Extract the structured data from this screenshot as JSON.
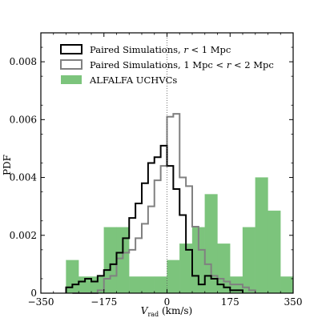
{
  "chart_data": {
    "type": "histogram",
    "xlabel": "V",
    "xlabel_sub": "rad",
    "xlabel_unit": " (km/s)",
    "ylabel": "PDF",
    "xlim": [
      -350,
      350
    ],
    "ylim": [
      0,
      0.009
    ],
    "xticks": [
      -350,
      -175,
      0,
      175,
      350
    ],
    "xtick_labels": [
      "−350",
      "−175",
      "0",
      "175",
      "350"
    ],
    "yticks": [
      0,
      0.002,
      0.004,
      0.006,
      0.008
    ],
    "ytick_labels": [
      "0",
      "0.002",
      "0.004",
      "0.006",
      "0.008"
    ],
    "reference_line_x": 0,
    "legend_position": "top-left",
    "alfalfa": {
      "name": "ALFALFA UCHVCs",
      "color": "#7cc47c",
      "bin_edges": [
        -350,
        -315,
        -280,
        -245,
        -210,
        -175,
        -140,
        -105,
        -70,
        -35,
        0,
        35,
        70,
        105,
        140,
        175,
        210,
        245,
        280,
        315,
        350
      ],
      "values": [
        0.0,
        0.0,
        0.00114,
        0.00057,
        0.00057,
        0.00228,
        0.00228,
        0.00057,
        0.00057,
        0.00057,
        0.00114,
        0.00171,
        0.00228,
        0.00342,
        0.00171,
        0.00057,
        0.00228,
        0.004,
        0.00285,
        0.00057
      ]
    },
    "series": [
      {
        "name": "Paired Simulations, r < 1 Mpc",
        "color": "#000000",
        "bin_edges": [
          -280,
          -262.5,
          -245,
          -227.5,
          -210,
          -192.5,
          -175,
          -157.5,
          -140,
          -122.5,
          -105,
          -87.5,
          -70,
          -52.5,
          -35,
          -17.5,
          0,
          17.5,
          35,
          52.5,
          70,
          87.5,
          105,
          122.5,
          140,
          157.5,
          175,
          192.5,
          210
        ],
        "values": [
          0.0002,
          0.0003,
          0.0004,
          0.0005,
          0.0004,
          0.0006,
          0.0008,
          0.001,
          0.0014,
          0.0019,
          0.0026,
          0.0031,
          0.0038,
          0.0045,
          0.0047,
          0.0051,
          0.0044,
          0.0036,
          0.0027,
          0.0015,
          0.0006,
          0.0003,
          0.0006,
          0.0005,
          0.0003,
          0.0002,
          0.0001,
          0.0001
        ]
      },
      {
        "name": "Paired Simulations, 1 Mpc < r < 2 Mpc",
        "color": "#808080",
        "bin_edges": [
          -262.5,
          -245,
          -227.5,
          -210,
          -192.5,
          -175,
          -157.5,
          -140,
          -122.5,
          -105,
          -87.5,
          -70,
          -52.5,
          -35,
          -17.5,
          0,
          17.5,
          35,
          52.5,
          70,
          87.5,
          105,
          122.5,
          140,
          157.5,
          175,
          192.5,
          210,
          227.5,
          245
        ],
        "values": [
          0.0,
          0.0,
          0.0,
          0.0,
          0.0001,
          0.0005,
          0.0006,
          0.0012,
          0.0014,
          0.0015,
          0.0019,
          0.0024,
          0.003,
          0.0039,
          0.0044,
          0.0061,
          0.0062,
          0.004,
          0.0037,
          0.0023,
          0.0015,
          0.001,
          0.0006,
          0.0005,
          0.0004,
          0.0003,
          0.0003,
          0.0002,
          0.0001
        ]
      }
    ],
    "legend": {
      "simulations_close_prefix": "Paired Simulations, ",
      "simulations_close_var": "r",
      "simulations_close_suffix": " < 1 Mpc",
      "simulations_far_prefix": "Paired Simulations, 1 Mpc < ",
      "simulations_far_var": "r",
      "simulations_far_suffix": " < 2 Mpc",
      "alfalfa_label": "ALFALFA UCHVCs"
    }
  }
}
